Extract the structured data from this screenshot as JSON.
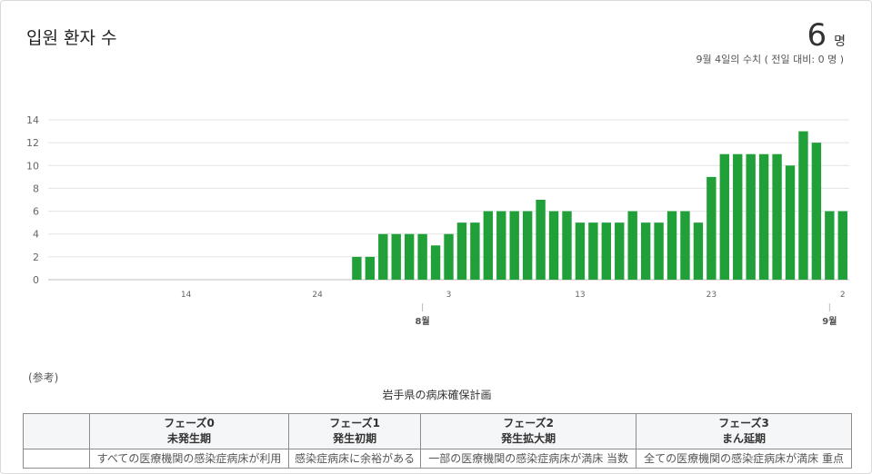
{
  "header": {
    "title": "입원 환자 수",
    "value": "6",
    "unit": "명",
    "subtitle": "9월 4일의 수치 ( 전일 대비: 0 명 )"
  },
  "chart_data": {
    "type": "bar",
    "color": "#21a03a",
    "ylim": [
      0,
      14
    ],
    "yticks": [
      0,
      2,
      4,
      6,
      8,
      10,
      12,
      14
    ],
    "grid": true,
    "x_tick_labels": [
      {
        "index": 10,
        "label": "14"
      },
      {
        "index": 20,
        "label": "24"
      },
      {
        "index": 30,
        "label": "3"
      },
      {
        "index": 40,
        "label": "13"
      },
      {
        "index": 50,
        "label": "23"
      },
      {
        "index": 60,
        "label": "2"
      }
    ],
    "month_labels": [
      {
        "index": 28,
        "label": "8월"
      },
      {
        "index": 59,
        "label": "9월"
      }
    ],
    "values": [
      0,
      0,
      0,
      0,
      0,
      0,
      0,
      0,
      0,
      0,
      0,
      0,
      0,
      0,
      0,
      0,
      0,
      0,
      0,
      0,
      0,
      0,
      0,
      2,
      2,
      4,
      4,
      4,
      4,
      3,
      4,
      5,
      5,
      6,
      6,
      6,
      6,
      7,
      6,
      6,
      5,
      5,
      5,
      5,
      6,
      5,
      5,
      6,
      6,
      5,
      9,
      11,
      11,
      11,
      11,
      11,
      10,
      13,
      12,
      6,
      6
    ]
  },
  "reference": {
    "label": "(参考)",
    "table_title": "岩手県の病床確保計画",
    "columns": [
      {
        "phase": "",
        "name": ""
      },
      {
        "phase": "フェーズ0",
        "name": "未発生期"
      },
      {
        "phase": "フェーズ1",
        "name": "発生初期"
      },
      {
        "phase": "フェーズ2",
        "name": "発生拡大期"
      },
      {
        "phase": "フェーズ3",
        "name": "まん延期"
      }
    ],
    "first_row": [
      "",
      "すべての医療機関の感染症病床が利用",
      "感染症病床に余裕がある",
      "一部の医療機関の感染症病床が満床 当数",
      "全ての医療機関の感染症病床が満床 重点"
    ]
  }
}
